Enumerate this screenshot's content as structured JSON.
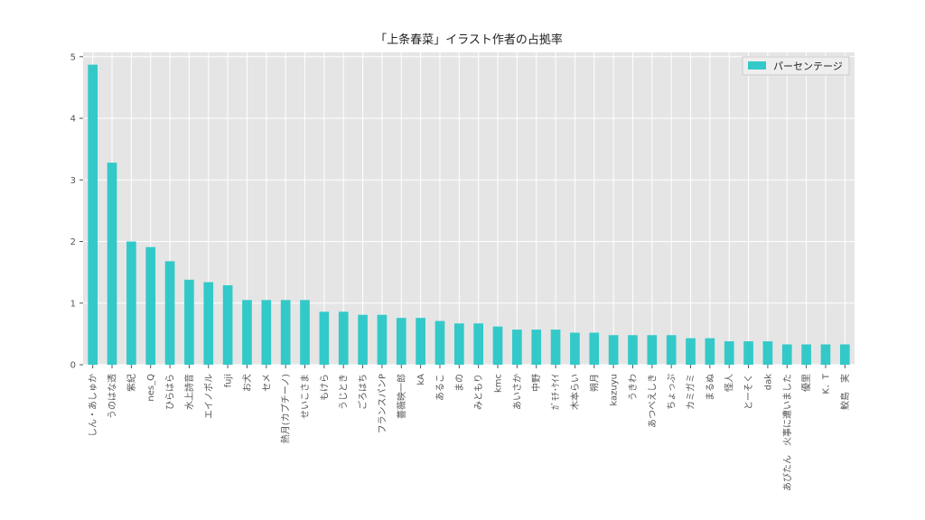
{
  "colors": {
    "bar": "#33c9c9",
    "plot_background": "#e5e5e5",
    "grid": "#ffffff"
  },
  "chart_data": {
    "type": "bar",
    "title": "「上条春菜」イラスト作者の占拠率",
    "xlabel": "",
    "ylabel": "",
    "ylim": [
      0,
      5.07
    ],
    "yticks": [
      0,
      1,
      2,
      3,
      4,
      5
    ],
    "grid": true,
    "legend_position": "top-right",
    "categories": [
      "しん・あしゅか",
      "うのはな透",
      "紫紀",
      "nes_Q",
      "ひらはら",
      "水上詩音",
      "エイノボル",
      "fuji",
      "お犬",
      "セメ",
      "熱月(カプチーノ)",
      "せいこさま",
      "もけら",
      "うじとき",
      "ごろはち",
      "フランスパンP",
      "薔薇映一郎",
      "kA",
      "あるこ",
      "まの",
      "みともり",
      "kmc",
      "あいさか",
      "中野",
      "ｶﾞﾓﾁ･ｹｲｲ",
      "木本らい",
      "朔月",
      "kazuyu",
      "うきわ",
      "あつべえしき",
      "ちょっぷ",
      "カミガミ",
      "まるぬ",
      "怪人",
      "とーそく",
      "dak",
      "あびたん　火事に遭いました",
      "優里",
      "K．T",
      "鮫島　実"
    ],
    "series": [
      {
        "name": "パーセンテージ",
        "values": [
          4.87,
          3.28,
          2.0,
          1.91,
          1.68,
          1.38,
          1.34,
          1.29,
          1.05,
          1.05,
          1.05,
          1.05,
          0.86,
          0.86,
          0.81,
          0.81,
          0.76,
          0.76,
          0.71,
          0.67,
          0.67,
          0.62,
          0.57,
          0.57,
          0.57,
          0.52,
          0.52,
          0.48,
          0.48,
          0.48,
          0.48,
          0.43,
          0.43,
          0.38,
          0.38,
          0.38,
          0.33,
          0.33,
          0.33,
          0.33
        ]
      }
    ]
  }
}
